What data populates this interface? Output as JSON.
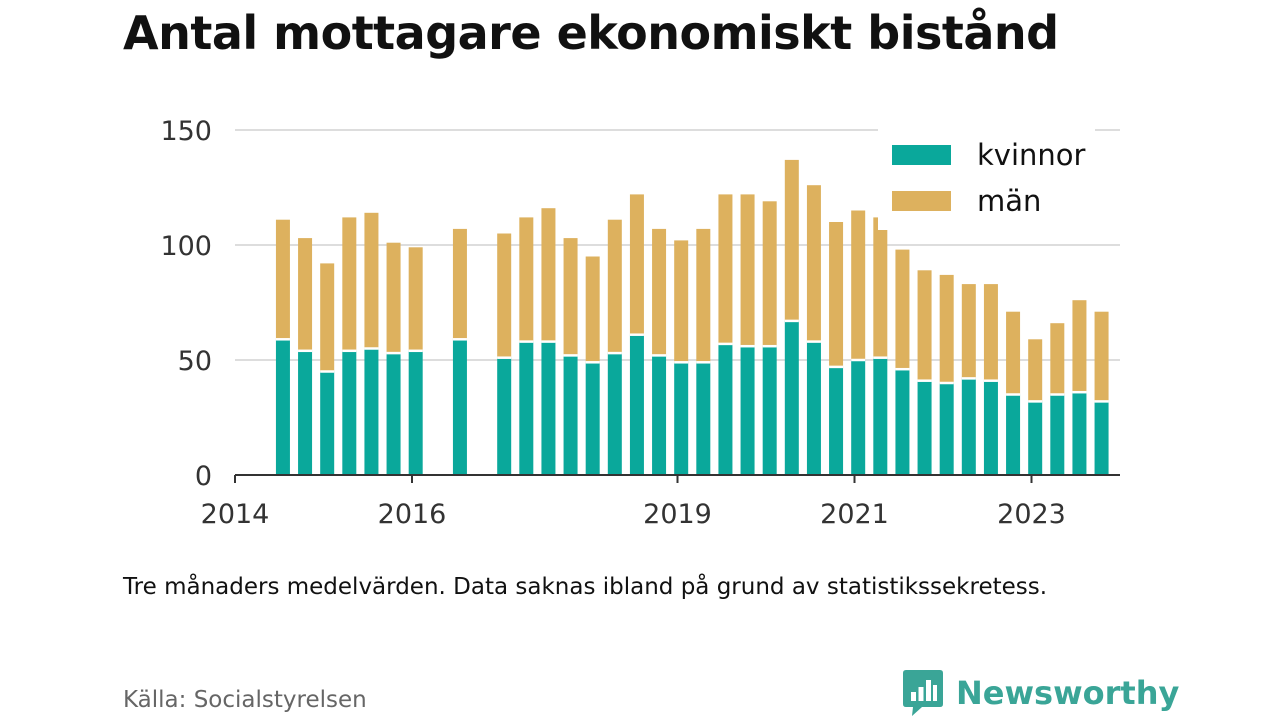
{
  "title": "Antal mottagare ekonomiskt bistånd",
  "note": "Tre månaders medelvärden. Data saknas ibland på grund av statistikssekretess.",
  "source": "Källa: Socialstyrelsen",
  "brand": {
    "name": "Newsworthy",
    "icon": "newsworthy-logo-icon",
    "color": "#3aa597"
  },
  "colors": {
    "kvinnor": "#0aa89b",
    "man": "#ddb15e",
    "grid": "#dddddd",
    "axis": "#333333",
    "text": "#333333"
  },
  "chart_data": {
    "type": "bar",
    "stacked": true,
    "ylim": [
      0,
      150
    ],
    "yticks": [
      0,
      50,
      100,
      150
    ],
    "xlim": [
      2014.0,
      2024.0
    ],
    "xticks": [
      2014,
      2016,
      2019,
      2021,
      2023
    ],
    "grid": true,
    "legend_position": "top-right",
    "series": [
      {
        "name": "kvinnor",
        "color": "#0aa89b"
      },
      {
        "name": "män",
        "color": "#ddb15e"
      }
    ],
    "bars": [
      {
        "period": "2014-07",
        "kvinnor": 59,
        "män": 52
      },
      {
        "period": "2014-10",
        "kvinnor": 54,
        "män": 49
      },
      {
        "period": "2015-01",
        "kvinnor": 45,
        "män": 47
      },
      {
        "period": "2015-04",
        "kvinnor": 54,
        "män": 58
      },
      {
        "period": "2015-07",
        "kvinnor": 55,
        "män": 59
      },
      {
        "period": "2015-10",
        "kvinnor": 53,
        "män": 48
      },
      {
        "period": "2016-01",
        "kvinnor": 54,
        "män": 45
      },
      {
        "period": "2016-07",
        "kvinnor": 59,
        "män": 48
      },
      {
        "period": "2017-01",
        "kvinnor": 51,
        "män": 54
      },
      {
        "period": "2017-04",
        "kvinnor": 58,
        "män": 54
      },
      {
        "period": "2017-07",
        "kvinnor": 58,
        "män": 58
      },
      {
        "period": "2017-10",
        "kvinnor": 52,
        "män": 51
      },
      {
        "period": "2018-01",
        "kvinnor": 49,
        "män": 46
      },
      {
        "period": "2018-04",
        "kvinnor": 53,
        "män": 58
      },
      {
        "period": "2018-07",
        "kvinnor": 61,
        "män": 61
      },
      {
        "period": "2018-10",
        "kvinnor": 52,
        "män": 55
      },
      {
        "period": "2019-01",
        "kvinnor": 49,
        "män": 53
      },
      {
        "period": "2019-04",
        "kvinnor": 49,
        "män": 58
      },
      {
        "period": "2019-07",
        "kvinnor": 57,
        "män": 65
      },
      {
        "period": "2019-10",
        "kvinnor": 56,
        "män": 66
      },
      {
        "period": "2020-01",
        "kvinnor": 56,
        "män": 63
      },
      {
        "period": "2020-04",
        "kvinnor": 67,
        "män": 70
      },
      {
        "period": "2020-07",
        "kvinnor": 58,
        "män": 68
      },
      {
        "period": "2020-10",
        "kvinnor": 47,
        "män": 63
      },
      {
        "period": "2021-01",
        "kvinnor": 50,
        "män": 65
      },
      {
        "period": "2021-04",
        "kvinnor": 51,
        "män": 61
      },
      {
        "period": "2021-07",
        "kvinnor": 46,
        "män": 52
      },
      {
        "period": "2021-10",
        "kvinnor": 41,
        "män": 48
      },
      {
        "period": "2022-01",
        "kvinnor": 40,
        "män": 47
      },
      {
        "period": "2022-04",
        "kvinnor": 42,
        "män": 41
      },
      {
        "period": "2022-07",
        "kvinnor": 41,
        "män": 42
      },
      {
        "period": "2022-10",
        "kvinnor": 35,
        "män": 36
      },
      {
        "period": "2023-01",
        "kvinnor": 32,
        "män": 27
      },
      {
        "period": "2023-04",
        "kvinnor": 35,
        "män": 31
      },
      {
        "period": "2023-07",
        "kvinnor": 36,
        "män": 40
      },
      {
        "period": "2023-10",
        "kvinnor": 32,
        "män": 39
      }
    ]
  }
}
